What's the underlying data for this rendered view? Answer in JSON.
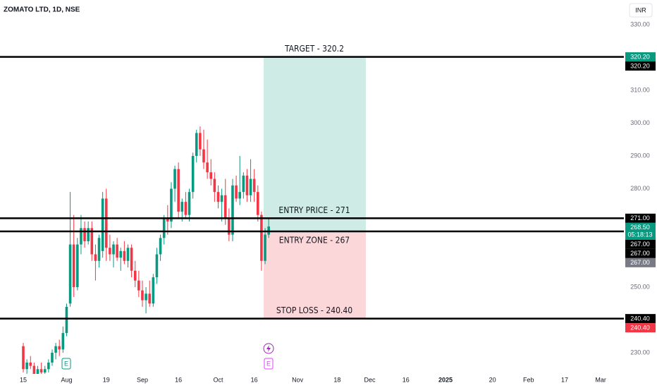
{
  "chart_data": {
    "type": "candlestick",
    "title": "ZOMATO LTD, 1D, NSE",
    "currency": "INR",
    "up_color": "#089981",
    "down_color": "#f23645",
    "xlim": [
      -6.45,
      166.41
    ],
    "ylim": [
      219.25,
      337.53
    ],
    "grid": false,
    "xticks": [
      {
        "value": 0,
        "label": "15"
      },
      {
        "value": 12,
        "label": "Aug"
      },
      {
        "value": 23,
        "label": "19"
      },
      {
        "value": 33,
        "label": "Sep"
      },
      {
        "value": 43,
        "label": "16"
      },
      {
        "value": 54,
        "label": "Oct"
      },
      {
        "value": 64,
        "label": "16"
      },
      {
        "value": 76,
        "label": "Nov"
      },
      {
        "value": 87,
        "label": "18"
      },
      {
        "value": 96,
        "label": "Dec"
      },
      {
        "value": 106,
        "label": "16"
      },
      {
        "value": 117,
        "label": "2025",
        "bold": true
      },
      {
        "value": 130,
        "label": "20"
      },
      {
        "value": 140,
        "label": "Feb"
      },
      {
        "value": 150,
        "label": "17"
      },
      {
        "value": 160,
        "label": "Mar"
      }
    ],
    "yticks": [
      {
        "value": 330,
        "label": "330.00"
      },
      {
        "value": 310,
        "label": "310.00"
      },
      {
        "value": 300,
        "label": "300.00"
      },
      {
        "value": 290,
        "label": "290.00"
      },
      {
        "value": 280,
        "label": "280.00"
      },
      {
        "value": 250,
        "label": "250.00"
      },
      {
        "value": 230,
        "label": "230.00"
      }
    ],
    "open": [
      232,
      225,
      227,
      226,
      223,
      225,
      224,
      225,
      227,
      230,
      232,
      231,
      236,
      245,
      263,
      250,
      263,
      268,
      264,
      268,
      260,
      258,
      261,
      277,
      262,
      260,
      263,
      259,
      261,
      258,
      262,
      255,
      252,
      249,
      246,
      248,
      245,
      253,
      260,
      265,
      271,
      270,
      280,
      286,
      273,
      276,
      272,
      279,
      290,
      297,
      292,
      288,
      285,
      283,
      279,
      276,
      278,
      271,
      266,
      281,
      277,
      279,
      284,
      278,
      283,
      279,
      272,
      258,
      266
    ],
    "high": [
      233,
      228,
      229,
      227,
      226,
      227,
      226,
      228,
      231,
      233,
      234,
      238,
      245,
      279,
      272,
      265,
      272,
      270,
      270,
      270,
      263,
      266,
      279,
      280,
      266,
      264,
      265,
      262,
      264,
      263,
      263,
      258,
      255,
      252,
      250,
      252,
      254,
      262,
      266,
      272,
      275,
      282,
      287,
      288,
      277,
      279,
      280,
      291,
      298,
      299,
      298,
      295,
      289,
      285,
      281,
      280,
      283,
      274,
      283,
      284,
      290,
      285,
      286,
      289,
      286,
      281,
      273,
      268,
      271
    ],
    "low": [
      224,
      223,
      225,
      222,
      221,
      223,
      222,
      224,
      226,
      228,
      229,
      230,
      235,
      244,
      247,
      249,
      260,
      262,
      263,
      258,
      252,
      256,
      259,
      258,
      258,
      256,
      258,
      255,
      257,
      256,
      253,
      250,
      247,
      244,
      242,
      244,
      244,
      251,
      258,
      263,
      266,
      268,
      276,
      271,
      270,
      271,
      270,
      277,
      288,
      290,
      286,
      283,
      281,
      276,
      274,
      270,
      269,
      264,
      264,
      276,
      275,
      277,
      276,
      276,
      276,
      270,
      255,
      257,
      265
    ],
    "close": [
      225,
      227,
      226,
      223,
      225,
      224,
      225,
      227,
      230,
      232,
      231,
      236,
      244,
      263,
      250,
      263,
      268,
      264,
      268,
      260,
      258,
      265,
      277,
      262,
      260,
      263,
      259,
      261,
      258,
      262,
      255,
      252,
      249,
      246,
      248,
      245,
      253,
      260,
      265,
      271,
      270,
      280,
      286,
      273,
      276,
      272,
      279,
      290,
      297,
      292,
      288,
      285,
      283,
      279,
      276,
      278,
      271,
      266,
      281,
      277,
      279,
      284,
      278,
      283,
      279,
      272,
      258,
      266,
      268.5
    ],
    "levels": [
      {
        "label": "TARGET - 320.2",
        "value": 320.2,
        "label_side": "above"
      },
      {
        "label": "ENTRY PRICE - 271",
        "value": 271,
        "label_side": "above"
      },
      {
        "label": "ENTRY ZONE - 267",
        "value": 267,
        "label_side": "below"
      },
      {
        "label": "STOP LOSS - 240.40",
        "value": 240.4,
        "label_side": "above"
      }
    ],
    "position": {
      "profit_color": "rgba(8,153,129,0.2)",
      "loss_color": "rgba(242,54,69,0.2)"
    },
    "price_labels": [
      {
        "value": 320.2,
        "label": "320.20",
        "color": "#089981"
      },
      {
        "value": 320.2,
        "label": "320.20",
        "color": "#000000"
      },
      {
        "value": 271,
        "label": "271.00",
        "color": "#000000"
      },
      {
        "value": 268.5,
        "label": "268.50",
        "timer": "05:18:13",
        "color": "#089981"
      },
      {
        "value": 267,
        "label": "267.00",
        "color": "#000000"
      },
      {
        "value": 267,
        "label": "267.00",
        "color": "#000000"
      },
      {
        "value": 267,
        "label": "267.00",
        "color": "#787b86"
      },
      {
        "value": 240.4,
        "label": "240.40",
        "color": "#000000"
      },
      {
        "value": 240.4,
        "label": "240.40",
        "color": "#f23645"
      }
    ]
  }
}
